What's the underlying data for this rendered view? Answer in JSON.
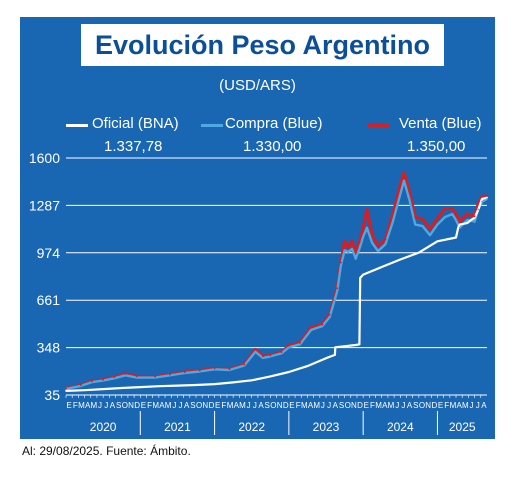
{
  "chart_data": {
    "type": "line",
    "title": "Evolución Peso Argentino",
    "subtitle": "(USD/ARS)",
    "source": "Al: 29/08/2025. Fuente: Ámbito.",
    "yticks": [
      35,
      348,
      661,
      974,
      1287,
      1600
    ],
    "ylim": [
      35,
      1600
    ],
    "xlim": [
      2020.0,
      2025.667
    ],
    "month_letters": [
      "E",
      "F",
      "M",
      "A",
      "M",
      "J",
      "J",
      "A",
      "S",
      "O",
      "N",
      "D"
    ],
    "year_labels": [
      "2020",
      "2021",
      "2022",
      "2023",
      "2024",
      "2025"
    ],
    "legend_position": "top",
    "grid": true,
    "series": [
      {
        "name": "Oficial (BNA)",
        "color": "#ffffff",
        "last_value": "1.337,78",
        "x": [
          2020.0,
          2020.25,
          2020.5,
          2020.75,
          2021.0,
          2021.25,
          2021.5,
          2021.75,
          2022.0,
          2022.25,
          2022.5,
          2022.75,
          2023.0,
          2023.25,
          2023.5,
          2023.62,
          2023.625,
          2023.9,
          2023.95,
          2023.96,
          2024.0,
          2024.25,
          2024.5,
          2024.75,
          2025.0,
          2025.25,
          2025.28,
          2025.3,
          2025.4,
          2025.45,
          2025.5,
          2025.55,
          2025.6,
          2025.667
        ],
        "values": [
          62,
          67,
          74,
          81,
          87,
          93,
          97,
          101,
          107,
          118,
          132,
          158,
          187,
          226,
          278,
          300,
          350,
          365,
          370,
          808,
          830,
          880,
          930,
          975,
          1050,
          1075,
          1140,
          1160,
          1170,
          1190,
          1205,
          1260,
          1330,
          1338
        ]
      },
      {
        "name": "Compra (Blue)",
        "color": "#4fa8e0",
        "last_value": "1.330,00",
        "x": [
          2020.0,
          2020.2,
          2020.35,
          2020.5,
          2020.65,
          2020.8,
          2020.95,
          2021.2,
          2021.4,
          2021.6,
          2021.8,
          2022.0,
          2022.2,
          2022.4,
          2022.55,
          2022.65,
          2022.75,
          2022.9,
          2023.0,
          2023.15,
          2023.3,
          2023.45,
          2023.55,
          2023.65,
          2023.7,
          2023.75,
          2023.8,
          2023.85,
          2023.9,
          2023.95,
          2024.0,
          2024.05,
          2024.12,
          2024.2,
          2024.3,
          2024.4,
          2024.5,
          2024.55,
          2024.62,
          2024.7,
          2024.8,
          2024.9,
          2025.0,
          2025.1,
          2025.2,
          2025.25,
          2025.3,
          2025.4,
          2025.5,
          2025.55,
          2025.6,
          2025.667
        ],
        "values": [
          75,
          95,
          120,
          130,
          145,
          165,
          150,
          150,
          165,
          180,
          190,
          205,
          200,
          230,
          320,
          280,
          290,
          310,
          350,
          370,
          465,
          490,
          550,
          720,
          890,
          990,
          980,
          1000,
          935,
          1000,
          1080,
          1140,
          1040,
          985,
          1030,
          1180,
          1360,
          1450,
          1330,
          1160,
          1150,
          1090,
          1160,
          1210,
          1230,
          1190,
          1140,
          1190,
          1180,
          1260,
          1310,
          1330
        ]
      },
      {
        "name": "Venta (Blue)",
        "color": "#d31f26",
        "last_value": "1.350,00",
        "x": [
          2020.0,
          2020.2,
          2020.35,
          2020.5,
          2020.65,
          2020.8,
          2020.95,
          2021.2,
          2021.4,
          2021.6,
          2021.8,
          2022.0,
          2022.2,
          2022.4,
          2022.55,
          2022.65,
          2022.75,
          2022.9,
          2023.0,
          2023.15,
          2023.3,
          2023.45,
          2023.55,
          2023.65,
          2023.7,
          2023.75,
          2023.8,
          2023.85,
          2023.9,
          2023.95,
          2024.0,
          2024.05,
          2024.12,
          2024.2,
          2024.3,
          2024.4,
          2024.5,
          2024.55,
          2024.62,
          2024.7,
          2024.8,
          2024.9,
          2025.0,
          2025.1,
          2025.2,
          2025.25,
          2025.3,
          2025.4,
          2025.5,
          2025.55,
          2025.6,
          2025.667
        ],
        "values": [
          78,
          100,
          126,
          136,
          152,
          175,
          158,
          156,
          170,
          186,
          196,
          210,
          205,
          236,
          335,
          290,
          296,
          318,
          360,
          380,
          480,
          500,
          565,
          740,
          910,
          1050,
          1010,
          1050,
          975,
          1040,
          1140,
          1260,
          1090,
          1020,
          1060,
          1230,
          1420,
          1500,
          1380,
          1210,
          1195,
          1130,
          1200,
          1265,
          1265,
          1230,
          1180,
          1230,
          1215,
          1300,
          1345,
          1350
        ]
      }
    ]
  }
}
